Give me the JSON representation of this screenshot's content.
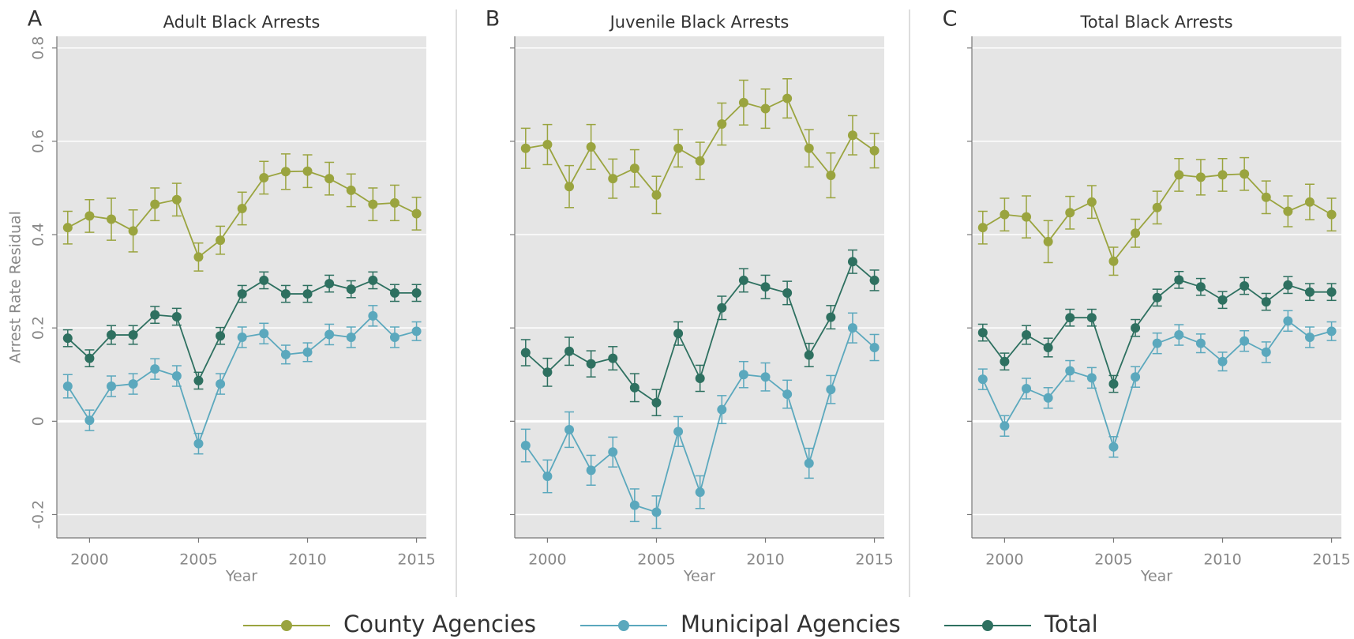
{
  "chart_data": [
    {
      "type": "line",
      "panel_label": "A",
      "title": "Adult Black Arrests",
      "xlabel": "Year",
      "ylabel": "Arrest Rate Residual",
      "show_ytick_labels": true,
      "x": [
        1999,
        2000,
        2001,
        2002,
        2003,
        2004,
        2005,
        2006,
        2007,
        2008,
        2009,
        2010,
        2011,
        2012,
        2013,
        2014,
        2015
      ],
      "xlim": [
        1998.5,
        2015.45
      ],
      "ylim": [
        -0.25,
        0.825
      ],
      "xticks": [
        2000,
        2005,
        2010,
        2015
      ],
      "yticks": [
        -0.2,
        0,
        0.2,
        0.4,
        0.6,
        0.8
      ],
      "grid": true,
      "series": [
        {
          "name": "County Agencies",
          "color": "#9aa43f",
          "values": [
            0.415,
            0.44,
            0.433,
            0.408,
            0.465,
            0.475,
            0.352,
            0.388,
            0.456,
            0.522,
            0.535,
            0.536,
            0.52,
            0.495,
            0.465,
            0.468,
            0.445
          ],
          "errors": [
            0.035,
            0.035,
            0.045,
            0.045,
            0.035,
            0.035,
            0.03,
            0.03,
            0.035,
            0.035,
            0.038,
            0.035,
            0.035,
            0.035,
            0.035,
            0.038,
            0.035
          ]
        },
        {
          "name": "Municipal Agencies",
          "color": "#5ba8bd",
          "values": [
            0.075,
            0.002,
            0.075,
            0.08,
            0.112,
            0.097,
            -0.048,
            0.08,
            0.18,
            0.188,
            0.143,
            0.148,
            0.186,
            0.18,
            0.226,
            0.18,
            0.193
          ],
          "errors": [
            0.025,
            0.022,
            0.022,
            0.022,
            0.022,
            0.022,
            0.022,
            0.022,
            0.022,
            0.022,
            0.02,
            0.02,
            0.022,
            0.022,
            0.022,
            0.022,
            0.02
          ]
        },
        {
          "name": "Total",
          "color": "#2e7060",
          "values": [
            0.178,
            0.135,
            0.185,
            0.185,
            0.228,
            0.224,
            0.087,
            0.183,
            0.273,
            0.302,
            0.273,
            0.273,
            0.295,
            0.283,
            0.302,
            0.275,
            0.275
          ],
          "errors": [
            0.018,
            0.018,
            0.02,
            0.02,
            0.018,
            0.018,
            0.018,
            0.018,
            0.018,
            0.018,
            0.018,
            0.018,
            0.018,
            0.018,
            0.018,
            0.018,
            0.018
          ]
        }
      ]
    },
    {
      "type": "line",
      "panel_label": "B",
      "title": "Juvenile Black Arrests",
      "xlabel": "Year",
      "show_ytick_labels": false,
      "x": [
        1999,
        2000,
        2001,
        2002,
        2003,
        2004,
        2005,
        2006,
        2007,
        2008,
        2009,
        2010,
        2011,
        2012,
        2013,
        2014,
        2015
      ],
      "xlim": [
        1998.5,
        2015.45
      ],
      "ylim": [
        -0.25,
        0.825
      ],
      "xticks": [
        2000,
        2005,
        2010,
        2015
      ],
      "yticks": [
        -0.2,
        0,
        0.2,
        0.4,
        0.6,
        0.8
      ],
      "grid": true,
      "series": [
        {
          "color": "#9aa43f",
          "values": [
            0.585,
            0.593,
            0.503,
            0.588,
            0.52,
            0.542,
            0.485,
            0.585,
            0.558,
            0.637,
            0.683,
            0.67,
            0.692,
            0.585,
            0.527,
            0.613,
            0.58
          ],
          "errors": [
            0.043,
            0.043,
            0.045,
            0.048,
            0.042,
            0.04,
            0.04,
            0.04,
            0.04,
            0.045,
            0.048,
            0.042,
            0.042,
            0.04,
            0.048,
            0.042,
            0.037
          ]
        },
        {
          "color": "#5ba8bd",
          "values": [
            -0.052,
            -0.118,
            -0.018,
            -0.105,
            -0.066,
            -0.18,
            -0.195,
            -0.022,
            -0.152,
            0.025,
            0.1,
            0.095,
            0.058,
            -0.09,
            0.068,
            0.2,
            0.158
          ],
          "errors": [
            0.035,
            0.035,
            0.038,
            0.032,
            0.032,
            0.035,
            0.035,
            0.032,
            0.035,
            0.03,
            0.028,
            0.03,
            0.03,
            0.032,
            0.03,
            0.032,
            0.028
          ]
        },
        {
          "color": "#2e7060",
          "values": [
            0.147,
            0.105,
            0.15,
            0.123,
            0.135,
            0.072,
            0.04,
            0.188,
            0.092,
            0.243,
            0.302,
            0.288,
            0.275,
            0.142,
            0.223,
            0.342,
            0.302
          ],
          "errors": [
            0.028,
            0.03,
            0.03,
            0.028,
            0.025,
            0.03,
            0.028,
            0.025,
            0.028,
            0.025,
            0.025,
            0.025,
            0.025,
            0.025,
            0.025,
            0.025,
            0.022
          ]
        }
      ]
    },
    {
      "type": "line",
      "panel_label": "C",
      "title": "Total Black Arrests",
      "xlabel": "Year",
      "show_ytick_labels": false,
      "x": [
        1999,
        2000,
        2001,
        2002,
        2003,
        2004,
        2005,
        2006,
        2007,
        2008,
        2009,
        2010,
        2011,
        2012,
        2013,
        2014,
        2015
      ],
      "xlim": [
        1998.5,
        2015.45
      ],
      "ylim": [
        -0.25,
        0.825
      ],
      "xticks": [
        2000,
        2005,
        2010,
        2015
      ],
      "yticks": [
        -0.2,
        0,
        0.2,
        0.4,
        0.6,
        0.8
      ],
      "grid": true,
      "series": [
        {
          "color": "#9aa43f",
          "values": [
            0.415,
            0.443,
            0.438,
            0.385,
            0.447,
            0.47,
            0.343,
            0.403,
            0.458,
            0.528,
            0.523,
            0.528,
            0.53,
            0.48,
            0.45,
            0.47,
            0.443
          ],
          "errors": [
            0.035,
            0.035,
            0.045,
            0.045,
            0.035,
            0.035,
            0.03,
            0.03,
            0.035,
            0.035,
            0.038,
            0.035,
            0.035,
            0.035,
            0.033,
            0.038,
            0.035
          ]
        },
        {
          "color": "#5ba8bd",
          "values": [
            0.09,
            -0.01,
            0.07,
            0.05,
            0.108,
            0.093,
            -0.055,
            0.095,
            0.167,
            0.185,
            0.167,
            0.128,
            0.172,
            0.148,
            0.215,
            0.18,
            0.193
          ],
          "errors": [
            0.022,
            0.022,
            0.022,
            0.022,
            0.022,
            0.022,
            0.022,
            0.022,
            0.022,
            0.022,
            0.02,
            0.02,
            0.022,
            0.022,
            0.022,
            0.022,
            0.02
          ]
        },
        {
          "color": "#2e7060",
          "values": [
            0.19,
            0.128,
            0.185,
            0.158,
            0.222,
            0.222,
            0.08,
            0.2,
            0.265,
            0.303,
            0.288,
            0.26,
            0.29,
            0.256,
            0.292,
            0.277,
            0.277
          ],
          "errors": [
            0.018,
            0.018,
            0.02,
            0.02,
            0.018,
            0.018,
            0.018,
            0.018,
            0.018,
            0.018,
            0.018,
            0.018,
            0.018,
            0.018,
            0.018,
            0.018,
            0.018
          ]
        }
      ]
    }
  ]
}
